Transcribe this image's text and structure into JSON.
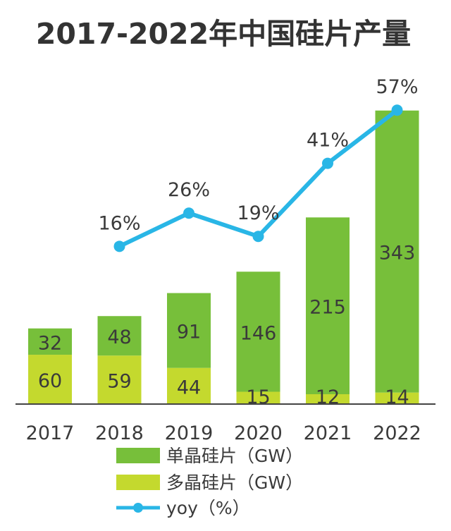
{
  "chart_data": {
    "type": "bar",
    "title": "2017-2022年中国硅片产量",
    "categories": [
      "2017",
      "2018",
      "2019",
      "2020",
      "2021",
      "2022"
    ],
    "series": [
      {
        "name": "多晶硅片（GW）",
        "values": [
          60,
          59,
          44,
          15,
          12,
          14
        ],
        "color": "#c4d92e"
      },
      {
        "name": "单晶硅片（GW）",
        "values": [
          32,
          48,
          91,
          146,
          215,
          343
        ],
        "color": "#77bf3a"
      }
    ],
    "line_series": {
      "name": "yoy（%）",
      "x": [
        "2018",
        "2019",
        "2020",
        "2021",
        "2022"
      ],
      "values": [
        16,
        26,
        19,
        41,
        57
      ],
      "suffix": "%",
      "color": "#29b6e6"
    },
    "stacked": true,
    "legend_position": "bottom",
    "grid": false
  }
}
